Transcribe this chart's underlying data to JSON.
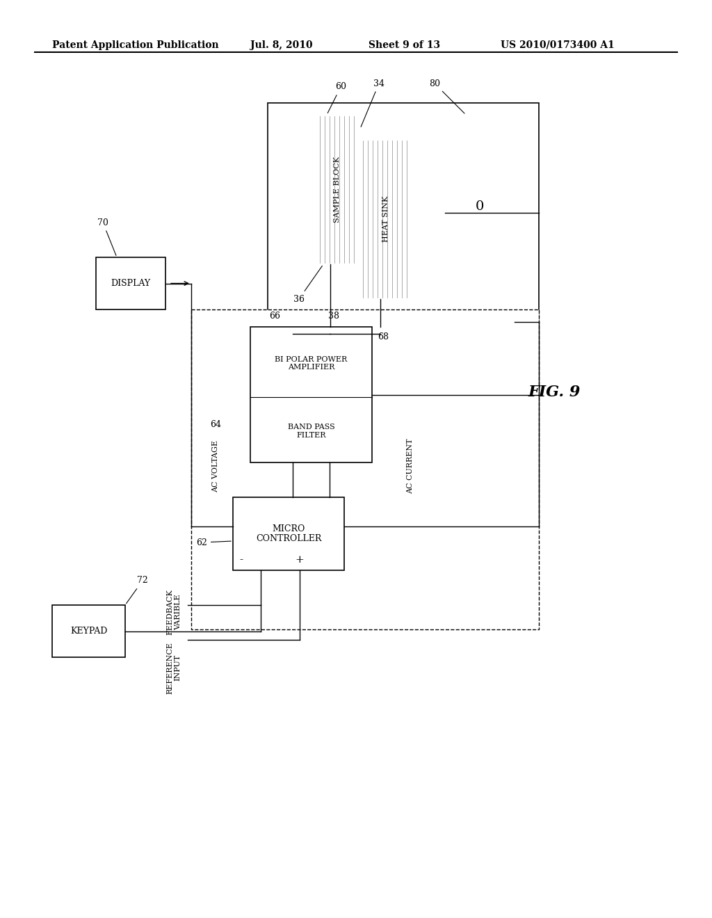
{
  "title": "Patent Application Publication",
  "date": "Jul. 8, 2010",
  "sheet": "Sheet 9 of 13",
  "patent_num": "US 2010/0173400 A1",
  "fig_label": "FIG. 9",
  "background_color": "#ffffff"
}
